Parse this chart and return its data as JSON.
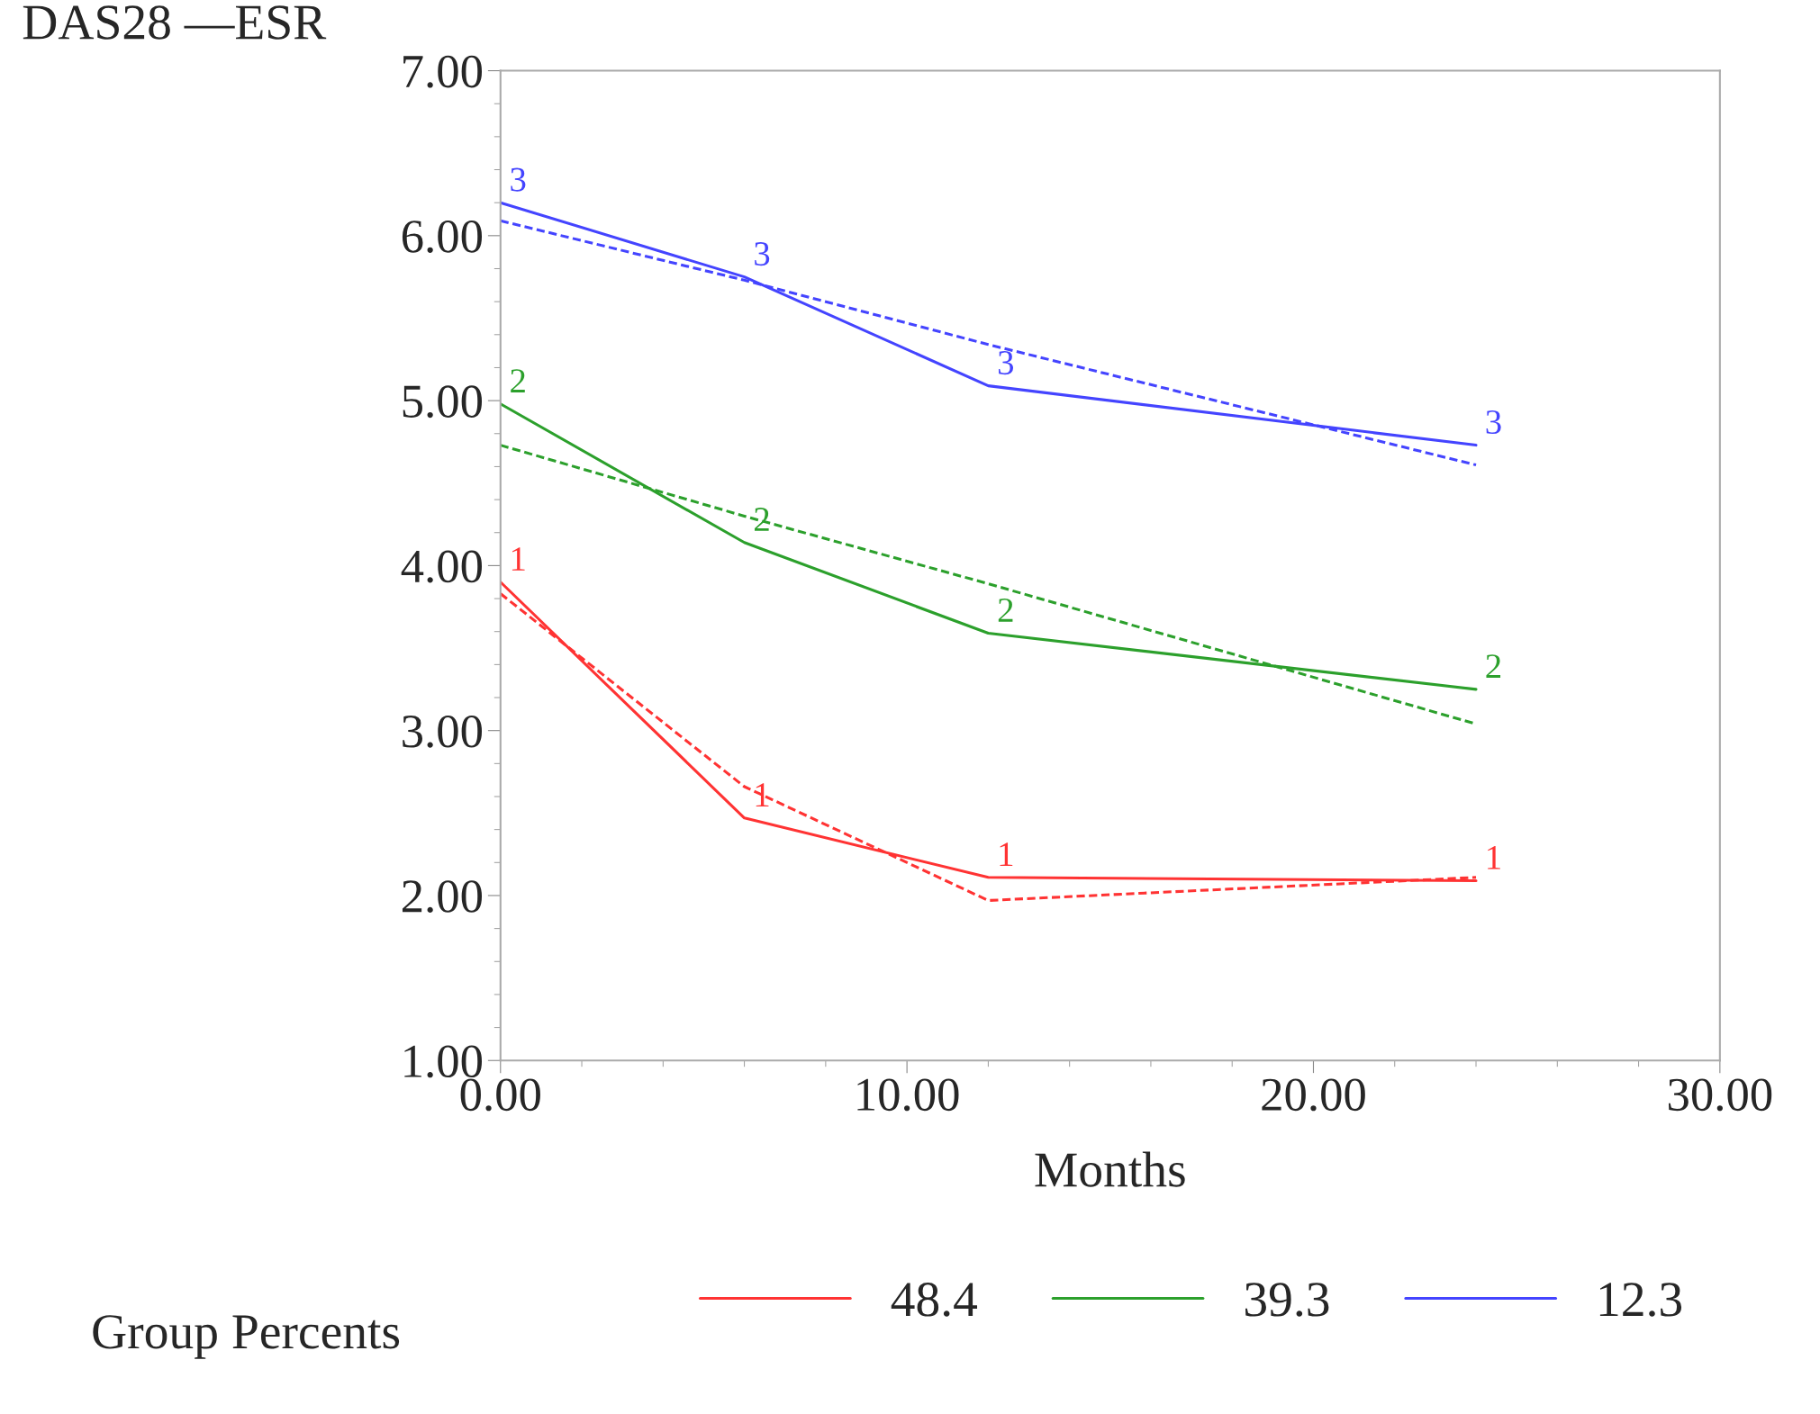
{
  "chart_data": {
    "type": "line",
    "ylabel": "DAS28 —ESR",
    "xlabel": "Months",
    "legend_title": "Group Percents",
    "legend": "bottom",
    "grid": false,
    "marker": "none",
    "xlim": [
      0,
      30
    ],
    "xticks": [
      {
        "value": 0,
        "label": "0.00"
      },
      {
        "value": 10,
        "label": "10.00"
      },
      {
        "value": 20,
        "label": "20.00"
      },
      {
        "value": 30,
        "label": "30.00"
      }
    ],
    "ylim": [
      1,
      7
    ],
    "yticks": [
      {
        "value": 1,
        "label": "1.00"
      },
      {
        "value": 2,
        "label": "2.00"
      },
      {
        "value": 3,
        "label": "3.00"
      },
      {
        "value": 4,
        "label": "4.00"
      },
      {
        "value": 5,
        "label": "5.00"
      },
      {
        "value": 6,
        "label": "6.00"
      },
      {
        "value": 7,
        "label": "7.00"
      }
    ],
    "x": [
      0,
      6,
      12,
      24
    ],
    "series": [
      {
        "name": "48.4",
        "color": "#ff3333",
        "line_style": "solid",
        "values": [
          3.9,
          2.47,
          2.11,
          2.09
        ]
      },
      {
        "color": "#ff3333",
        "line_style": "dashed",
        "values": [
          3.83,
          2.66,
          1.97,
          2.11
        ]
      },
      {
        "name": "39.3",
        "color": "#2ca02c",
        "line_style": "solid",
        "values": [
          4.98,
          4.14,
          3.59,
          3.25
        ]
      },
      {
        "color": "#2ca02c",
        "line_style": "dashed",
        "values": [
          4.73,
          4.3,
          3.89,
          3.04
        ]
      },
      {
        "name": "12.3",
        "color": "#4444ff",
        "line_style": "solid",
        "values": [
          6.2,
          5.75,
          5.09,
          4.73
        ]
      },
      {
        "color": "#4444ff",
        "line_style": "dashed",
        "values": [
          6.09,
          5.73,
          5.34,
          4.61
        ]
      }
    ],
    "annotations": [
      {
        "text": "1",
        "x": 0,
        "y": 3.9
      },
      {
        "text": "1",
        "x": 6,
        "y": 2.47
      },
      {
        "text": "1",
        "x": 12,
        "y": 2.11
      },
      {
        "text": "1",
        "x": 24,
        "y": 2.09
      },
      {
        "text": "2",
        "x": 0,
        "y": 4.98
      },
      {
        "text": "2",
        "x": 6,
        "y": 4.14
      },
      {
        "text": "2",
        "x": 12,
        "y": 3.59
      },
      {
        "text": "2",
        "x": 24,
        "y": 3.25
      },
      {
        "text": "3",
        "x": 0,
        "y": 6.2
      },
      {
        "text": "3",
        "x": 6,
        "y": 5.75
      },
      {
        "text": "3",
        "x": 12,
        "y": 5.09
      },
      {
        "text": "3",
        "x": 24,
        "y": 4.73
      }
    ]
  }
}
